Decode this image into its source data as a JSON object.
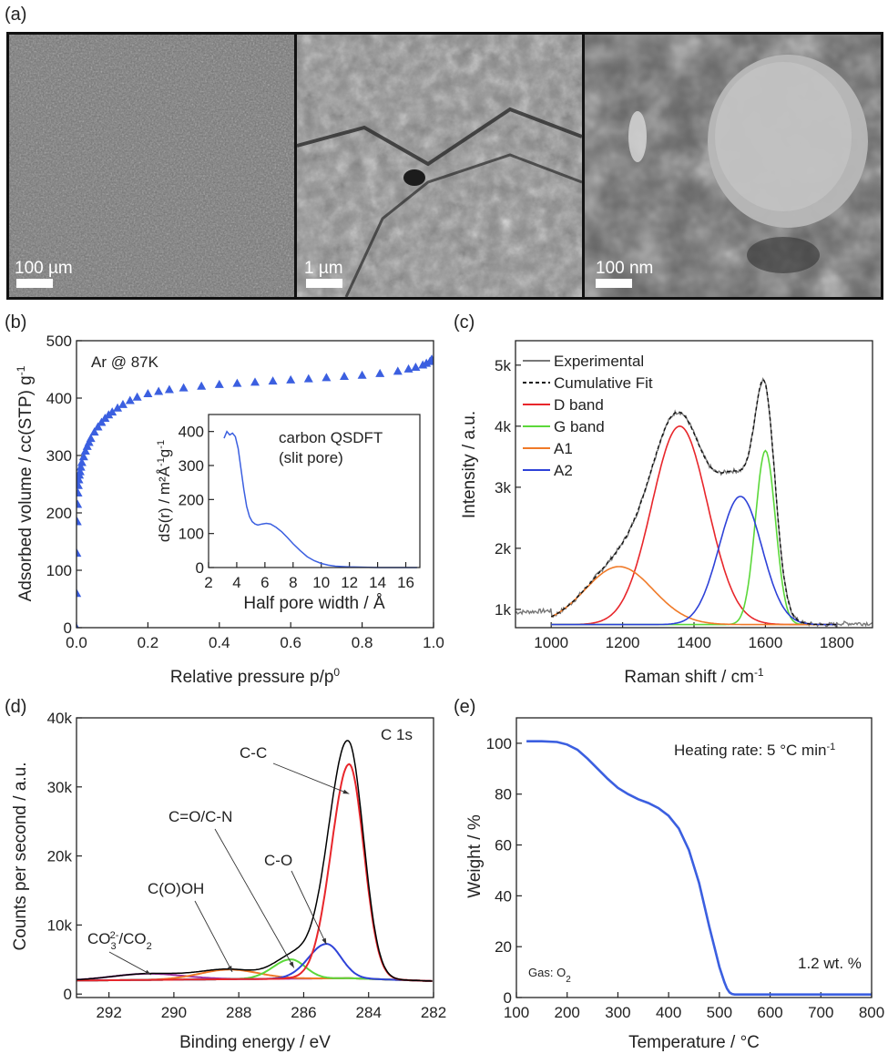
{
  "figure": {
    "panels": [
      "(a)",
      "(b)",
      "(c)",
      "(d)",
      "(e)"
    ]
  },
  "sem": {
    "scale_bars": [
      "100 µm",
      "1 µm",
      "100 nm"
    ]
  },
  "chart_data": [
    {
      "id": "b",
      "type": "scatter",
      "xlabel": "Relative pressure p/p",
      "xlabel_sup": "0",
      "ylabel": "Adsorbed volume / cc(STP) g",
      "ylabel_sup": "-1",
      "xlim": [
        0,
        1
      ],
      "ylim": [
        0,
        500
      ],
      "xticks": [
        "0.0",
        "0.2",
        "0.4",
        "0.6",
        "0.8",
        "1.0"
      ],
      "yticks": [
        "0",
        "100",
        "200",
        "300",
        "400",
        "500"
      ],
      "annotation": "Ar @ 87K",
      "color": "#3b5fe0",
      "x": [
        0.0,
        0.0005,
        0.001,
        0.002,
        0.003,
        0.004,
        0.005,
        0.0065,
        0.008,
        0.01,
        0.012,
        0.015,
        0.02,
        0.025,
        0.03,
        0.035,
        0.04,
        0.05,
        0.06,
        0.07,
        0.08,
        0.09,
        0.1,
        0.115,
        0.13,
        0.15,
        0.17,
        0.2,
        0.23,
        0.26,
        0.3,
        0.35,
        0.4,
        0.45,
        0.5,
        0.55,
        0.6,
        0.65,
        0.7,
        0.75,
        0.8,
        0.85,
        0.9,
        0.93,
        0.95,
        0.97,
        0.98,
        0.99,
        0.995
      ],
      "y": [
        0,
        60,
        130,
        185,
        215,
        235,
        248,
        258,
        266,
        272,
        280,
        288,
        298,
        308,
        316,
        323,
        330,
        341,
        350,
        358,
        365,
        371,
        376,
        383,
        389,
        396,
        402,
        408,
        412,
        415,
        418,
        421,
        424,
        426,
        428,
        430,
        432,
        434,
        436,
        438,
        440,
        443,
        447,
        451,
        454,
        458,
        461,
        464,
        468
      ],
      "inset": {
        "type": "line",
        "title": "carbon QSDFT",
        "subtitle": "(slit pore)",
        "xlabel": "Half pore width / Å",
        "ylabel": "dS(r) / m²Å",
        "ylabel_sup1": "-1",
        "ylabel_mid": "g",
        "ylabel_sup2": "-1",
        "xlim": [
          2,
          17
        ],
        "ylim": [
          0,
          450
        ],
        "xticks": [
          "2",
          "4",
          "6",
          "8",
          "10",
          "12",
          "14",
          "16"
        ],
        "yticks": [
          "0",
          "100",
          "200",
          "300",
          "400"
        ],
        "color": "#3b5fe0",
        "x": [
          3.1,
          3.3,
          3.5,
          3.7,
          3.9,
          4.1,
          4.3,
          4.5,
          4.7,
          4.9,
          5.1,
          5.3,
          5.5,
          5.8,
          6.1,
          6.4,
          6.8,
          7.2,
          7.6,
          8.0,
          8.5,
          9.0,
          9.5,
          10.0,
          10.5,
          11.0,
          12.0,
          13.0,
          14.0,
          15.0,
          16.0,
          16.8
        ],
        "y": [
          380,
          400,
          390,
          395,
          385,
          350,
          290,
          230,
          180,
          150,
          135,
          128,
          125,
          128,
          130,
          128,
          118,
          105,
          88,
          70,
          50,
          32,
          20,
          12,
          7,
          4,
          2,
          1,
          0,
          0,
          0,
          0
        ]
      }
    },
    {
      "id": "c",
      "type": "line",
      "xlabel": "Raman shift / cm",
      "xlabel_sup": "-1",
      "ylabel": "Intensity / a.u.",
      "xlim": [
        900,
        1900
      ],
      "ylim": [
        700,
        5400
      ],
      "xticks": [
        "1000",
        "1200",
        "1400",
        "1600",
        "1800"
      ],
      "xtick_values": [
        1000,
        1200,
        1400,
        1600,
        1800
      ],
      "yticks": [
        "1k",
        "2k",
        "3k",
        "4k",
        "5k"
      ],
      "ytick_values": [
        1000,
        2000,
        3000,
        4000,
        5000
      ],
      "baseline": 750,
      "legend_position": "top-left",
      "series": [
        {
          "name": "Experimental",
          "color": "#777777"
        },
        {
          "name": "Cumulative Fit",
          "color": "#111111"
        },
        {
          "name": "D band",
          "color": "#e8262b",
          "center": 1360,
          "height": 3250,
          "width": 78
        },
        {
          "name": "G band",
          "color": "#5bd83a",
          "center": 1600,
          "height": 2850,
          "width": 28
        },
        {
          "name": "A1",
          "color": "#f07a28",
          "center": 1190,
          "height": 950,
          "width": 95
        },
        {
          "name": "A2",
          "color": "#2e42d8",
          "center": 1530,
          "height": 2100,
          "width": 60
        }
      ]
    },
    {
      "id": "d",
      "type": "line",
      "xlabel": "Binding energy / eV",
      "ylabel": "Counts per second / a.u.",
      "xlim": [
        293,
        282
      ],
      "ylim": [
        -500,
        40000
      ],
      "xticks": [
        "292",
        "290",
        "288",
        "286",
        "284",
        "282"
      ],
      "xtick_values": [
        292,
        290,
        288,
        286,
        284,
        282
      ],
      "yticks": [
        "0",
        "10k",
        "20k",
        "30k",
        "40k"
      ],
      "ytick_values": [
        0,
        10000,
        20000,
        30000,
        40000
      ],
      "annotation": "C 1s",
      "labels": [
        {
          "text": "C-C",
          "target_x": 284.6,
          "target_y": 29000
        },
        {
          "text": "C-O",
          "target_x": 285.3,
          "target_y": 7200
        },
        {
          "text": "C=O/C-N",
          "target_x": 286.3,
          "target_y": 3800
        },
        {
          "text": "C(O)OH",
          "target_x": 288.2,
          "target_y": 3200
        },
        {
          "text": "CO",
          "text_sub": "3",
          "text_sup": "2-",
          "text_tail": "/CO",
          "text_tail_sub": "2",
          "target_x": 290.7,
          "target_y": 2800
        }
      ],
      "series": [
        {
          "name": "",
          "color": "#000000"
        },
        {
          "name": "C-C",
          "color": "#e8262b",
          "center": 284.6,
          "height": 31000
        },
        {
          "name": "C-O",
          "color": "#2e42d8",
          "center": 285.3,
          "height": 5000
        },
        {
          "name": "C=O/C-N",
          "color": "#5bd83a",
          "center": 286.4,
          "height": 2800
        },
        {
          "name": "C(O)OH",
          "color": "#f07a28",
          "center": 288.3,
          "height": 1400
        },
        {
          "name": "CO32-/CO2",
          "color": "#9b2fa0",
          "center": 290.8,
          "height": 900
        }
      ]
    },
    {
      "id": "e",
      "type": "line",
      "xlabel": "Temperature / °C",
      "ylabel": "Weight / %",
      "xlim": [
        100,
        800
      ],
      "ylim": [
        0,
        110
      ],
      "xticks": [
        "100",
        "200",
        "300",
        "400",
        "500",
        "600",
        "700",
        "800"
      ],
      "xtick_values": [
        100,
        200,
        300,
        400,
        500,
        600,
        700,
        800
      ],
      "yticks": [
        "0",
        "20",
        "40",
        "60",
        "80",
        "100"
      ],
      "ytick_values": [
        0,
        20,
        40,
        60,
        80,
        100
      ],
      "annotation": "Heating rate: 5 °C min",
      "annotation_sup": "-1",
      "gas_label": "Gas: O",
      "gas_sub": "2",
      "residue_label": "1.2 wt. %",
      "color": "#3b5fe0",
      "x": [
        120,
        150,
        180,
        200,
        220,
        240,
        260,
        280,
        300,
        320,
        340,
        360,
        380,
        400,
        420,
        440,
        460,
        480,
        490,
        500,
        510,
        515,
        520,
        525,
        530,
        540,
        600,
        700,
        800
      ],
      "y": [
        100.8,
        100.8,
        100.5,
        99.5,
        97.5,
        94,
        90,
        86,
        82.5,
        80,
        78,
        76.5,
        74.5,
        71.5,
        66.5,
        58,
        45,
        28,
        20,
        12,
        6,
        3.5,
        2,
        1.4,
        1.2,
        1.2,
        1.2,
        1.2,
        1.2
      ]
    }
  ]
}
